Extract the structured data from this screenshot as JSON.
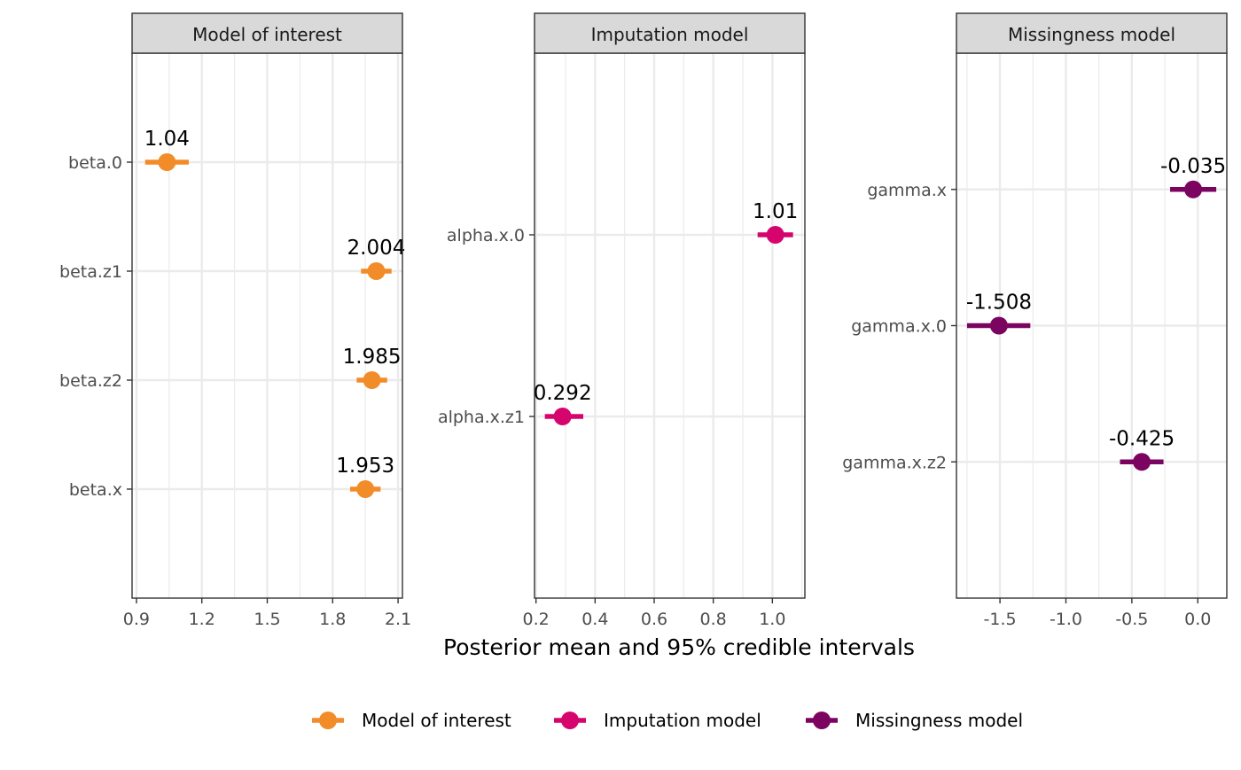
{
  "chart_data": {
    "type": "pointrange",
    "xlabel": "Posterior mean and 95% credible intervals",
    "legend": {
      "position": "bottom",
      "items": [
        {
          "label": "Model of interest",
          "color": "#F28C28"
        },
        {
          "label": "Imputation model",
          "color": "#D6056E"
        },
        {
          "label": "Missingness model",
          "color": "#7B0461"
        }
      ]
    },
    "panels": [
      {
        "strip": "Model of interest",
        "color": "#F28C28",
        "xlim": [
          0.88,
          2.12
        ],
        "xticks": [
          0.9,
          1.2,
          1.5,
          1.8,
          2.1
        ],
        "xtick_labels": [
          "0.9",
          "1.2",
          "1.5",
          "1.8",
          "2.1"
        ],
        "categories": [
          "beta.0",
          "beta.z1",
          "beta.z2",
          "beta.x"
        ],
        "points": [
          {
            "param": "beta.0",
            "mean": 1.04,
            "lower": 0.94,
            "upper": 1.14,
            "label": "1.04"
          },
          {
            "param": "beta.z1",
            "mean": 2.0,
            "lower": 1.93,
            "upper": 2.07,
            "label": "2.004"
          },
          {
            "param": "beta.z2",
            "mean": 1.98,
            "lower": 1.91,
            "upper": 2.05,
            "label": "1.985"
          },
          {
            "param": "beta.x",
            "mean": 1.95,
            "lower": 1.88,
            "upper": 2.02,
            "label": "1.953"
          }
        ]
      },
      {
        "strip": "Imputation model",
        "color": "#D6056E",
        "xlim": [
          0.195,
          1.11
        ],
        "xticks": [
          0.2,
          0.4,
          0.6,
          0.8,
          1.0
        ],
        "xtick_labels": [
          "0.2",
          "0.4",
          "0.6",
          "0.8",
          "1.0"
        ],
        "categories": [
          "alpha.x.0",
          "alpha.x.z1"
        ],
        "points": [
          {
            "param": "alpha.x.0",
            "mean": 1.01,
            "lower": 0.95,
            "upper": 1.07,
            "label": "1.01"
          },
          {
            "param": "alpha.x.z1",
            "mean": 0.29,
            "lower": 0.23,
            "upper": 0.36,
            "label": "0.292"
          }
        ]
      },
      {
        "strip": "Missingness model",
        "color": "#7B0461",
        "xlim": [
          -1.83,
          0.22
        ],
        "xticks": [
          -1.5,
          -1.0,
          -0.5,
          0.0
        ],
        "xtick_labels": [
          "-1.5",
          "-1.0",
          "-0.5",
          "0.0"
        ],
        "categories": [
          "gamma.x",
          "gamma.x.0",
          "gamma.x.z2"
        ],
        "points": [
          {
            "param": "gamma.x",
            "mean": -0.035,
            "lower": -0.21,
            "upper": 0.14,
            "label": "-0.035"
          },
          {
            "param": "gamma.x.0",
            "mean": -1.508,
            "lower": -1.75,
            "upper": -1.27,
            "label": "-1.508"
          },
          {
            "param": "gamma.x.z2",
            "mean": -0.425,
            "lower": -0.59,
            "upper": -0.26,
            "label": "-0.425"
          }
        ]
      }
    ]
  }
}
